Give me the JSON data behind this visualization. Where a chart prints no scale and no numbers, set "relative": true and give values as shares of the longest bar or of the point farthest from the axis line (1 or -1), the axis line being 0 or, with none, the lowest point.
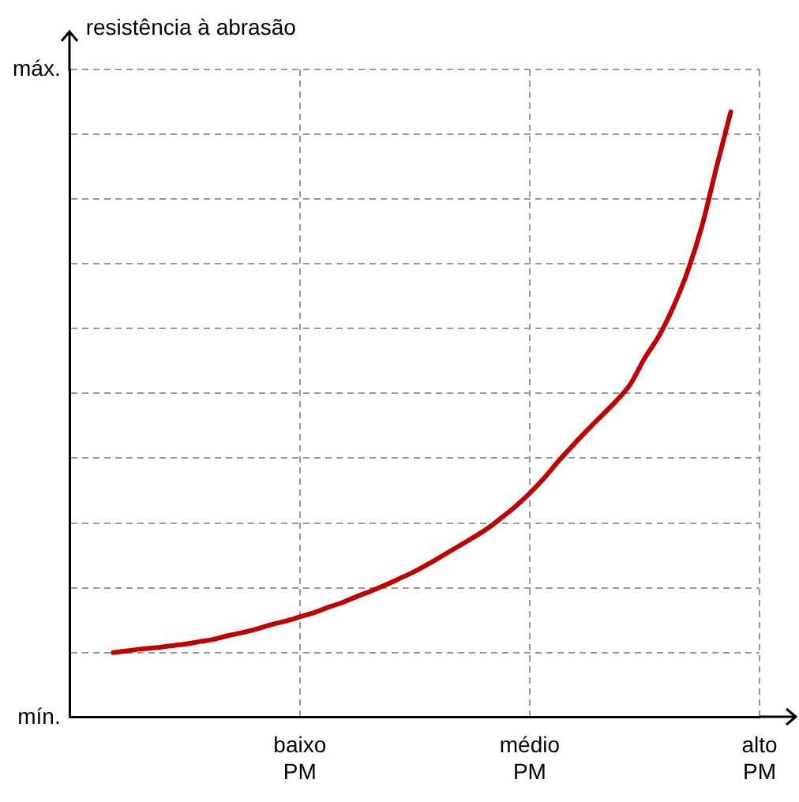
{
  "chart_data": {
    "type": "line",
    "relative": true,
    "annotations": [
      "mín.",
      "máx.",
      "resistência à abrasão"
    ],
    "categories": [
      null,
      null,
      null,
      null,
      null,
      null,
      null,
      null,
      null,
      null,
      null,
      null,
      null,
      null,
      null,
      null,
      "baixo\nPM",
      null,
      null,
      null,
      null,
      null,
      null,
      null,
      null,
      null,
      null,
      null,
      null,
      null,
      null,
      null,
      "médio\nPM",
      null,
      null,
      null,
      null,
      null,
      null,
      null,
      null,
      null,
      null,
      null,
      null,
      null,
      null,
      null,
      "alto\nPM"
    ],
    "series": [
      {
        "color": "#c00000",
        "values": [
          null,
          null,
          null,
          0.107,
          0.11,
          0.113,
          0.115,
          0.118,
          0.121,
          0.125,
          0.129,
          0.135,
          0.14,
          0.146,
          0.153,
          0.159,
          0.166,
          0.173,
          0.182,
          0.19,
          0.2,
          0.209,
          0.219,
          0.23,
          0.241,
          0.254,
          0.268,
          0.282,
          0.296,
          0.311,
          0.329,
          0.348,
          0.37,
          0.395,
          0.423,
          0.449,
          0.474,
          0.498,
          0.522,
          0.55,
          0.593,
          0.63,
          0.678,
          0.737,
          0.812,
          0.908,
          1,
          null,
          null
        ]
      }
    ],
    "grid": true,
    "marker": "none",
    "line_style": "solid"
  }
}
